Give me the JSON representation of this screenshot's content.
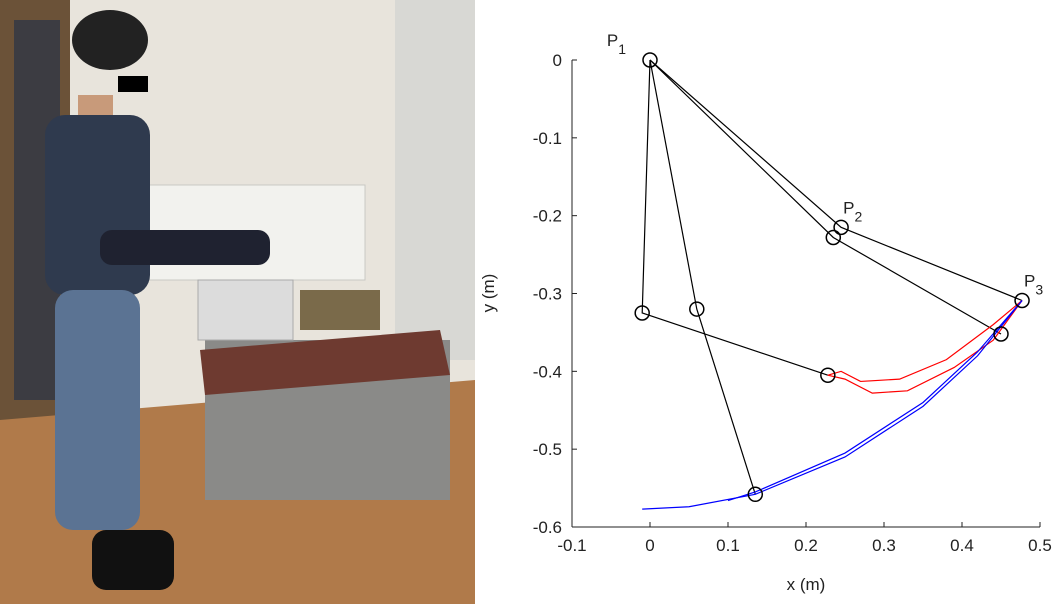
{
  "chart_data": {
    "type": "line",
    "xlabel": "x (m)",
    "ylabel": "y (m)",
    "xlim": [
      -0.1,
      0.5
    ],
    "ylim": [
      -0.6,
      0
    ],
    "xticks": [
      -0.1,
      0,
      0.1,
      0.2,
      0.3,
      0.4,
      0.5
    ],
    "yticks": [
      0,
      -0.1,
      -0.2,
      -0.3,
      -0.4,
      -0.5,
      -0.6
    ],
    "lines": [
      {
        "color": "#000000",
        "x": [
          0,
          0.245,
          0.477
        ],
        "y": [
          0,
          -0.215,
          -0.309
        ]
      },
      {
        "color": "#000000",
        "x": [
          0,
          0.235,
          0.45
        ],
        "y": [
          0,
          -0.228,
          -0.352
        ]
      },
      {
        "color": "#000000",
        "x": [
          0,
          -0.01,
          0.228
        ],
        "y": [
          0,
          -0.325,
          -0.405
        ]
      },
      {
        "color": "#000000",
        "x": [
          0,
          0.06,
          0.135
        ],
        "y": [
          0,
          -0.32,
          -0.558
        ]
      },
      {
        "color": "#ff0000",
        "x": [
          0.228,
          0.245,
          0.27,
          0.32,
          0.38,
          0.44,
          0.477
        ],
        "y": [
          -0.405,
          -0.4,
          -0.413,
          -0.41,
          -0.385,
          -0.34,
          -0.309
        ]
      },
      {
        "color": "#ff0000",
        "x": [
          0.228,
          0.25,
          0.285,
          0.33,
          0.39,
          0.44,
          0.477
        ],
        "y": [
          -0.405,
          -0.41,
          -0.428,
          -0.425,
          -0.395,
          -0.36,
          -0.309
        ]
      },
      {
        "color": "#0000ff",
        "x": [
          -0.01,
          0.05,
          0.135,
          0.25,
          0.35,
          0.42,
          0.477
        ],
        "y": [
          -0.577,
          -0.574,
          -0.558,
          -0.51,
          -0.445,
          -0.38,
          -0.309
        ]
      },
      {
        "color": "#0000ff",
        "x": [
          0.1,
          0.135,
          0.25,
          0.35,
          0.42,
          0.477
        ],
        "y": [
          -0.566,
          -0.555,
          -0.505,
          -0.44,
          -0.375,
          -0.309
        ]
      }
    ],
    "markers": {
      "color": "#000000",
      "x": [
        0,
        0.245,
        0.235,
        0.477,
        0.45,
        -0.01,
        0.06,
        0.228,
        0.135
      ],
      "y": [
        0,
        -0.215,
        -0.228,
        -0.309,
        -0.352,
        -0.325,
        -0.32,
        -0.405,
        -0.558
      ],
      "labels": [
        {
          "text": "P",
          "sub": "1"
        },
        {
          "text": "P",
          "sub": "2"
        },
        null,
        {
          "text": "P",
          "sub": "3"
        },
        null,
        null,
        null,
        null,
        null
      ]
    }
  }
}
